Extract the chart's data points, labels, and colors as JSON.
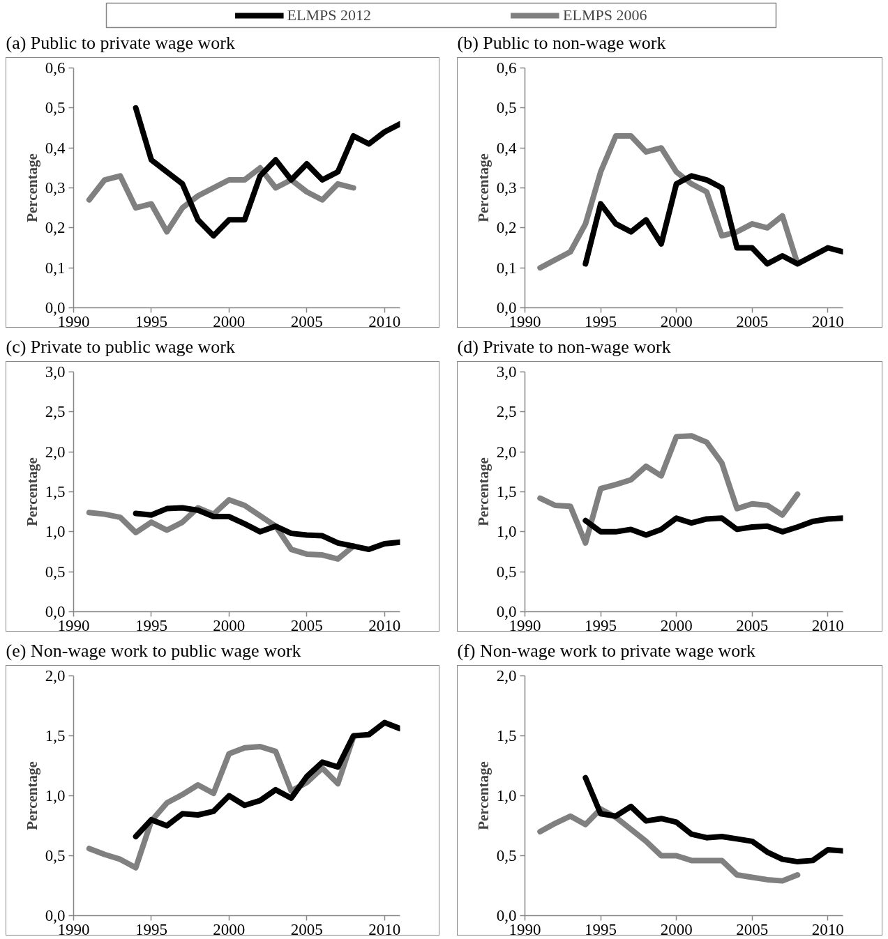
{
  "chart_data": [
    {
      "type": "line",
      "title": "(a) Public to private wage work",
      "ylabel": "Percentage",
      "legend": "top",
      "xlim": [
        1990,
        2011
      ],
      "xticks": [
        1990,
        1995,
        2000,
        2005,
        2010
      ],
      "ylim": [
        0,
        0.6
      ],
      "yticks": [
        {
          "value": 0,
          "label": "0,0"
        },
        {
          "value": 0.1,
          "label": "0,1"
        },
        {
          "value": 0.2,
          "label": "0,2"
        },
        {
          "value": 0.3,
          "label": "0,3"
        },
        {
          "value": 0.4,
          "label": "0,4"
        },
        {
          "value": 0.5,
          "label": "0,5"
        },
        {
          "value": 0.6,
          "label": "0,6"
        }
      ],
      "series": [
        {
          "name": "ELMPS 2012",
          "color": "#000000",
          "x": [
            1994,
            1995,
            1996,
            1997,
            1998,
            1999,
            2000,
            2001,
            2002,
            2003,
            2004,
            2005,
            2006,
            2007,
            2008,
            2009,
            2010,
            2011
          ],
          "values": [
            0.5,
            0.37,
            0.34,
            0.31,
            0.22,
            0.18,
            0.22,
            0.22,
            0.33,
            0.37,
            0.32,
            0.36,
            0.32,
            0.34,
            0.43,
            0.41,
            0.44,
            0.46
          ]
        },
        {
          "name": "ELMPS 2006",
          "color": "#808080",
          "x": [
            1991,
            1992,
            1993,
            1994,
            1995,
            1996,
            1997,
            1998,
            1999,
            2000,
            2001,
            2002,
            2003,
            2004,
            2005,
            2006,
            2007,
            2008
          ],
          "values": [
            0.27,
            0.32,
            0.33,
            0.25,
            0.26,
            0.19,
            0.25,
            0.28,
            0.3,
            0.32,
            0.32,
            0.35,
            0.3,
            0.32,
            0.29,
            0.27,
            0.31,
            0.3
          ]
        }
      ]
    },
    {
      "type": "line",
      "title": "(b) Public to non-wage work",
      "ylabel": "Percentage",
      "xlim": [
        1990,
        2011
      ],
      "xticks": [
        1990,
        1995,
        2000,
        2005,
        2010
      ],
      "ylim": [
        0,
        0.6
      ],
      "yticks": [
        {
          "value": 0,
          "label": "0,0"
        },
        {
          "value": 0.1,
          "label": "0,1"
        },
        {
          "value": 0.2,
          "label": "0,2"
        },
        {
          "value": 0.3,
          "label": "0,3"
        },
        {
          "value": 0.4,
          "label": "0,4"
        },
        {
          "value": 0.5,
          "label": "0,5"
        },
        {
          "value": 0.6,
          "label": "0,6"
        }
      ],
      "series": [
        {
          "color": "#000000",
          "x": [
            1994,
            1995,
            1996,
            1997,
            1998,
            1999,
            2000,
            2001,
            2002,
            2003,
            2004,
            2005,
            2006,
            2007,
            2008,
            2009,
            2010,
            2011
          ],
          "values": [
            0.11,
            0.26,
            0.21,
            0.19,
            0.22,
            0.16,
            0.31,
            0.33,
            0.32,
            0.3,
            0.15,
            0.15,
            0.11,
            0.13,
            0.11,
            0.13,
            0.15,
            0.14
          ]
        },
        {
          "color": "#808080",
          "x": [
            1991,
            1992,
            1993,
            1994,
            1995,
            1996,
            1997,
            1998,
            1999,
            2000,
            2001,
            2002,
            2003,
            2004,
            2005,
            2006,
            2007,
            2008
          ],
          "values": [
            0.1,
            0.12,
            0.14,
            0.21,
            0.34,
            0.43,
            0.43,
            0.39,
            0.4,
            0.34,
            0.31,
            0.29,
            0.18,
            0.19,
            0.21,
            0.2,
            0.23,
            0.11
          ]
        }
      ]
    },
    {
      "type": "line",
      "title": "(c) Private to public wage work",
      "ylabel": "Percentage",
      "xlim": [
        1990,
        2011
      ],
      "xticks": [
        1990,
        1995,
        2000,
        2005,
        2010
      ],
      "ylim": [
        0,
        3.0
      ],
      "yticks": [
        {
          "value": 0,
          "label": "0,0"
        },
        {
          "value": 0.5,
          "label": "0,5"
        },
        {
          "value": 1.0,
          "label": "1,0"
        },
        {
          "value": 1.5,
          "label": "1,5"
        },
        {
          "value": 2.0,
          "label": "2,0"
        },
        {
          "value": 2.5,
          "label": "2,5"
        },
        {
          "value": 3.0,
          "label": "3,0"
        }
      ],
      "series": [
        {
          "color": "#000000",
          "x": [
            1994,
            1995,
            1996,
            1997,
            1998,
            1999,
            2000,
            2001,
            2002,
            2003,
            2004,
            2005,
            2006,
            2007,
            2008,
            2009,
            2010,
            2011
          ],
          "values": [
            1.23,
            1.21,
            1.29,
            1.3,
            1.27,
            1.19,
            1.19,
            1.1,
            1.0,
            1.07,
            0.98,
            0.96,
            0.95,
            0.86,
            0.82,
            0.78,
            0.85,
            0.87
          ]
        },
        {
          "color": "#808080",
          "x": [
            1991,
            1992,
            1993,
            1994,
            1995,
            1996,
            1997,
            1998,
            1999,
            2000,
            2001,
            2002,
            2003,
            2004,
            2005,
            2006,
            2007,
            2008
          ],
          "values": [
            1.24,
            1.22,
            1.18,
            0.99,
            1.12,
            1.02,
            1.12,
            1.3,
            1.22,
            1.4,
            1.33,
            1.2,
            1.07,
            0.78,
            0.72,
            0.71,
            0.66,
            0.82
          ]
        }
      ]
    },
    {
      "type": "line",
      "title": "(d) Private to non-wage work",
      "ylabel": "Percentage",
      "xlim": [
        1990,
        2011
      ],
      "xticks": [
        1990,
        1995,
        2000,
        2005,
        2010
      ],
      "ylim": [
        0,
        3.0
      ],
      "yticks": [
        {
          "value": 0,
          "label": "0,0"
        },
        {
          "value": 0.5,
          "label": "0,5"
        },
        {
          "value": 1.0,
          "label": "1,0"
        },
        {
          "value": 1.5,
          "label": "1,5"
        },
        {
          "value": 2.0,
          "label": "2,0"
        },
        {
          "value": 2.5,
          "label": "2,5"
        },
        {
          "value": 3.0,
          "label": "3,0"
        }
      ],
      "series": [
        {
          "color": "#000000",
          "x": [
            1994,
            1995,
            1996,
            1997,
            1998,
            1999,
            2000,
            2001,
            2002,
            2003,
            2004,
            2005,
            2006,
            2007,
            2008,
            2009,
            2010,
            2011
          ],
          "values": [
            1.14,
            1.0,
            1.0,
            1.03,
            0.96,
            1.03,
            1.17,
            1.11,
            1.16,
            1.17,
            1.03,
            1.06,
            1.07,
            1.0,
            1.06,
            1.13,
            1.16,
            1.17
          ]
        },
        {
          "color": "#808080",
          "x": [
            1991,
            1992,
            1993,
            1994,
            1995,
            1996,
            1997,
            1998,
            1999,
            2000,
            2001,
            2002,
            2003,
            2004,
            2005,
            2006,
            2007,
            2008
          ],
          "values": [
            1.42,
            1.33,
            1.32,
            0.86,
            1.54,
            1.59,
            1.65,
            1.82,
            1.7,
            2.19,
            2.2,
            2.12,
            1.86,
            1.29,
            1.35,
            1.33,
            1.21,
            1.47
          ]
        }
      ]
    },
    {
      "type": "line",
      "title": "(e) Non-wage work to public wage work",
      "ylabel": "Percentage",
      "xlim": [
        1990,
        2011
      ],
      "xticks": [
        1990,
        1995,
        2000,
        2005,
        2010
      ],
      "ylim": [
        0,
        2.0
      ],
      "yticks": [
        {
          "value": 0,
          "label": "0,0"
        },
        {
          "value": 0.5,
          "label": "0,5"
        },
        {
          "value": 1.0,
          "label": "1,0"
        },
        {
          "value": 1.5,
          "label": "1,5"
        },
        {
          "value": 2.0,
          "label": "2,0"
        }
      ],
      "series": [
        {
          "color": "#000000",
          "x": [
            1994,
            1995,
            1996,
            1997,
            1998,
            1999,
            2000,
            2001,
            2002,
            2003,
            2004,
            2005,
            2006,
            2007,
            2008,
            2009,
            2010,
            2011
          ],
          "values": [
            0.66,
            0.8,
            0.75,
            0.85,
            0.84,
            0.87,
            1.0,
            0.92,
            0.96,
            1.05,
            0.98,
            1.16,
            1.28,
            1.24,
            1.5,
            1.51,
            1.61,
            1.56
          ]
        },
        {
          "color": "#808080",
          "x": [
            1991,
            1992,
            1993,
            1994,
            1995,
            1996,
            1997,
            1998,
            1999,
            2000,
            2001,
            2002,
            2003,
            2004,
            2005,
            2006,
            2007,
            2008
          ],
          "values": [
            0.56,
            0.51,
            0.47,
            0.4,
            0.79,
            0.94,
            1.01,
            1.09,
            1.02,
            1.35,
            1.4,
            1.41,
            1.37,
            1.04,
            1.11,
            1.23,
            1.1,
            1.49
          ]
        }
      ]
    },
    {
      "type": "line",
      "title": "(f) Non-wage work to private wage work",
      "ylabel": "Percentage",
      "xlim": [
        1990,
        2011
      ],
      "xticks": [
        1990,
        1995,
        2000,
        2005,
        2010
      ],
      "ylim": [
        0,
        2.0
      ],
      "yticks": [
        {
          "value": 0,
          "label": "0,0"
        },
        {
          "value": 0.5,
          "label": "0,5"
        },
        {
          "value": 1.0,
          "label": "1,0"
        },
        {
          "value": 1.5,
          "label": "1,5"
        },
        {
          "value": 2.0,
          "label": "2,0"
        }
      ],
      "series": [
        {
          "color": "#000000",
          "x": [
            1994,
            1995,
            1996,
            1997,
            1998,
            1999,
            2000,
            2001,
            2002,
            2003,
            2004,
            2005,
            2006,
            2007,
            2008,
            2009,
            2010,
            2011
          ],
          "values": [
            1.15,
            0.85,
            0.83,
            0.91,
            0.79,
            0.81,
            0.78,
            0.68,
            0.65,
            0.66,
            0.64,
            0.62,
            0.53,
            0.47,
            0.45,
            0.46,
            0.55,
            0.54
          ]
        },
        {
          "color": "#808080",
          "x": [
            1991,
            1992,
            1993,
            1994,
            1995,
            1996,
            1997,
            1998,
            1999,
            2000,
            2001,
            2002,
            2003,
            2004,
            2005,
            2006,
            2007,
            2008
          ],
          "values": [
            0.7,
            0.77,
            0.83,
            0.76,
            0.89,
            0.82,
            0.72,
            0.62,
            0.5,
            0.5,
            0.46,
            0.46,
            0.46,
            0.34,
            0.32,
            0.3,
            0.29,
            0.34
          ]
        }
      ]
    }
  ]
}
